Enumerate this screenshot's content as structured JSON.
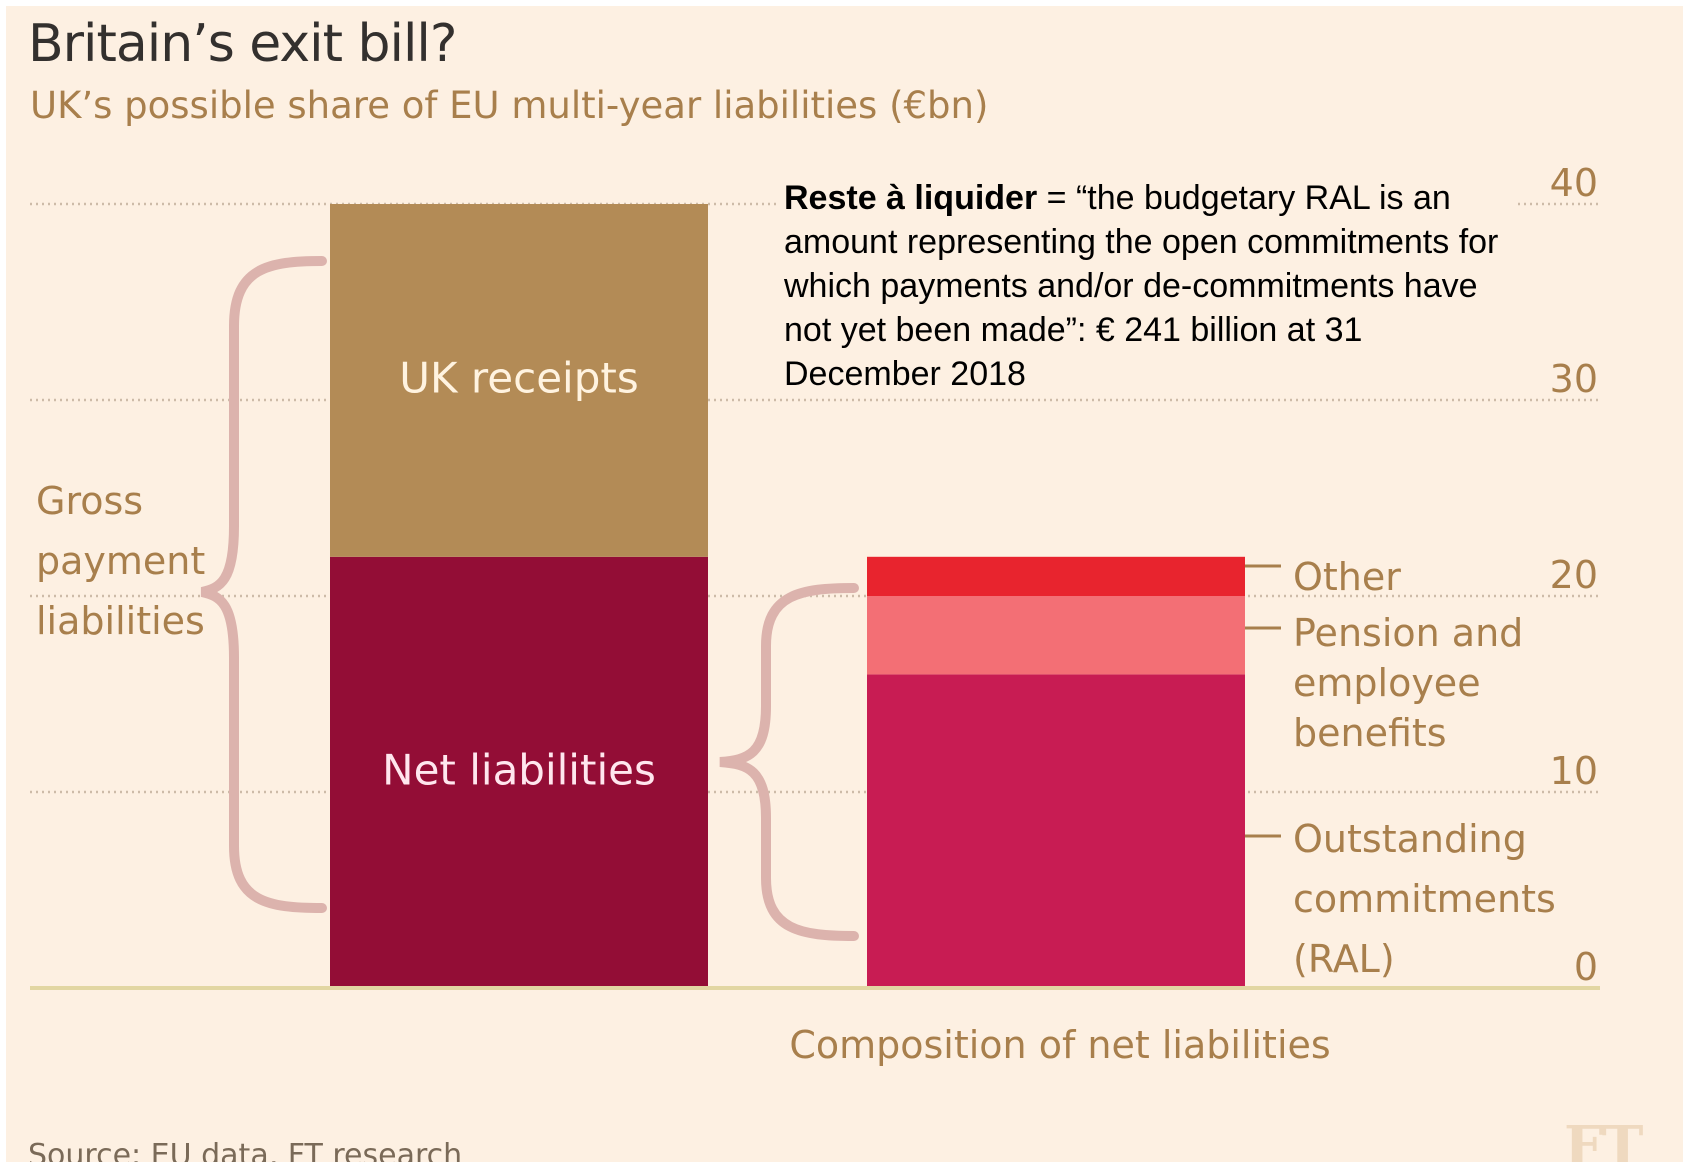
{
  "header": {
    "title": "Britain’s exit bill?",
    "subtitle": "UK’s possible share of EU multi-year liabilities (€bn)"
  },
  "chart_data": {
    "type": "bar",
    "stacked": true,
    "ylim": [
      0,
      40
    ],
    "y_ticks": [
      "0",
      "10",
      "20",
      "30",
      "40"
    ],
    "grid": true,
    "bars": [
      {
        "name": "Gross payment liabilities",
        "segments": [
          {
            "label": "Net liabilities",
            "value": 22,
            "color": "#930d36"
          },
          {
            "label": "UK receipts",
            "value": 18,
            "color": "#b38b56"
          }
        ]
      },
      {
        "name": "Composition of net liabilities",
        "segments": [
          {
            "label": "Outstanding commitments (RAL)",
            "value": 16,
            "color": "#c81c53"
          },
          {
            "label": "Pension and employee benefits",
            "value": 4,
            "color": "#f36f75"
          },
          {
            "label": "Other",
            "value": 2,
            "color": "#e8242e"
          }
        ]
      }
    ],
    "brace_labels": {
      "gross": [
        "Gross",
        "payment",
        "liabilities"
      ]
    },
    "side_labels": {
      "other": [
        "Other"
      ],
      "pension": [
        "Pension and",
        "employee",
        "benefits"
      ],
      "ral": [
        "Outstanding",
        "commitments",
        "(RAL)"
      ]
    },
    "x_label": "Composition of net liabilities",
    "colors": {
      "background": "#fdf0e2",
      "axis": "#e2d6a2",
      "grid": "#cdbba8",
      "label": "#a87f4c",
      "brace": "#dcb3ad"
    }
  },
  "annotation": {
    "bold": "Reste à liquider",
    "rest": " = “the budgetary RAL is an amount representing the open commitments for which payments and/or de-commitments have not yet been made”: € 241 billion at 31 December 2018"
  },
  "footer": {
    "source": "Source: EU data, FT research",
    "logo": "FT"
  }
}
